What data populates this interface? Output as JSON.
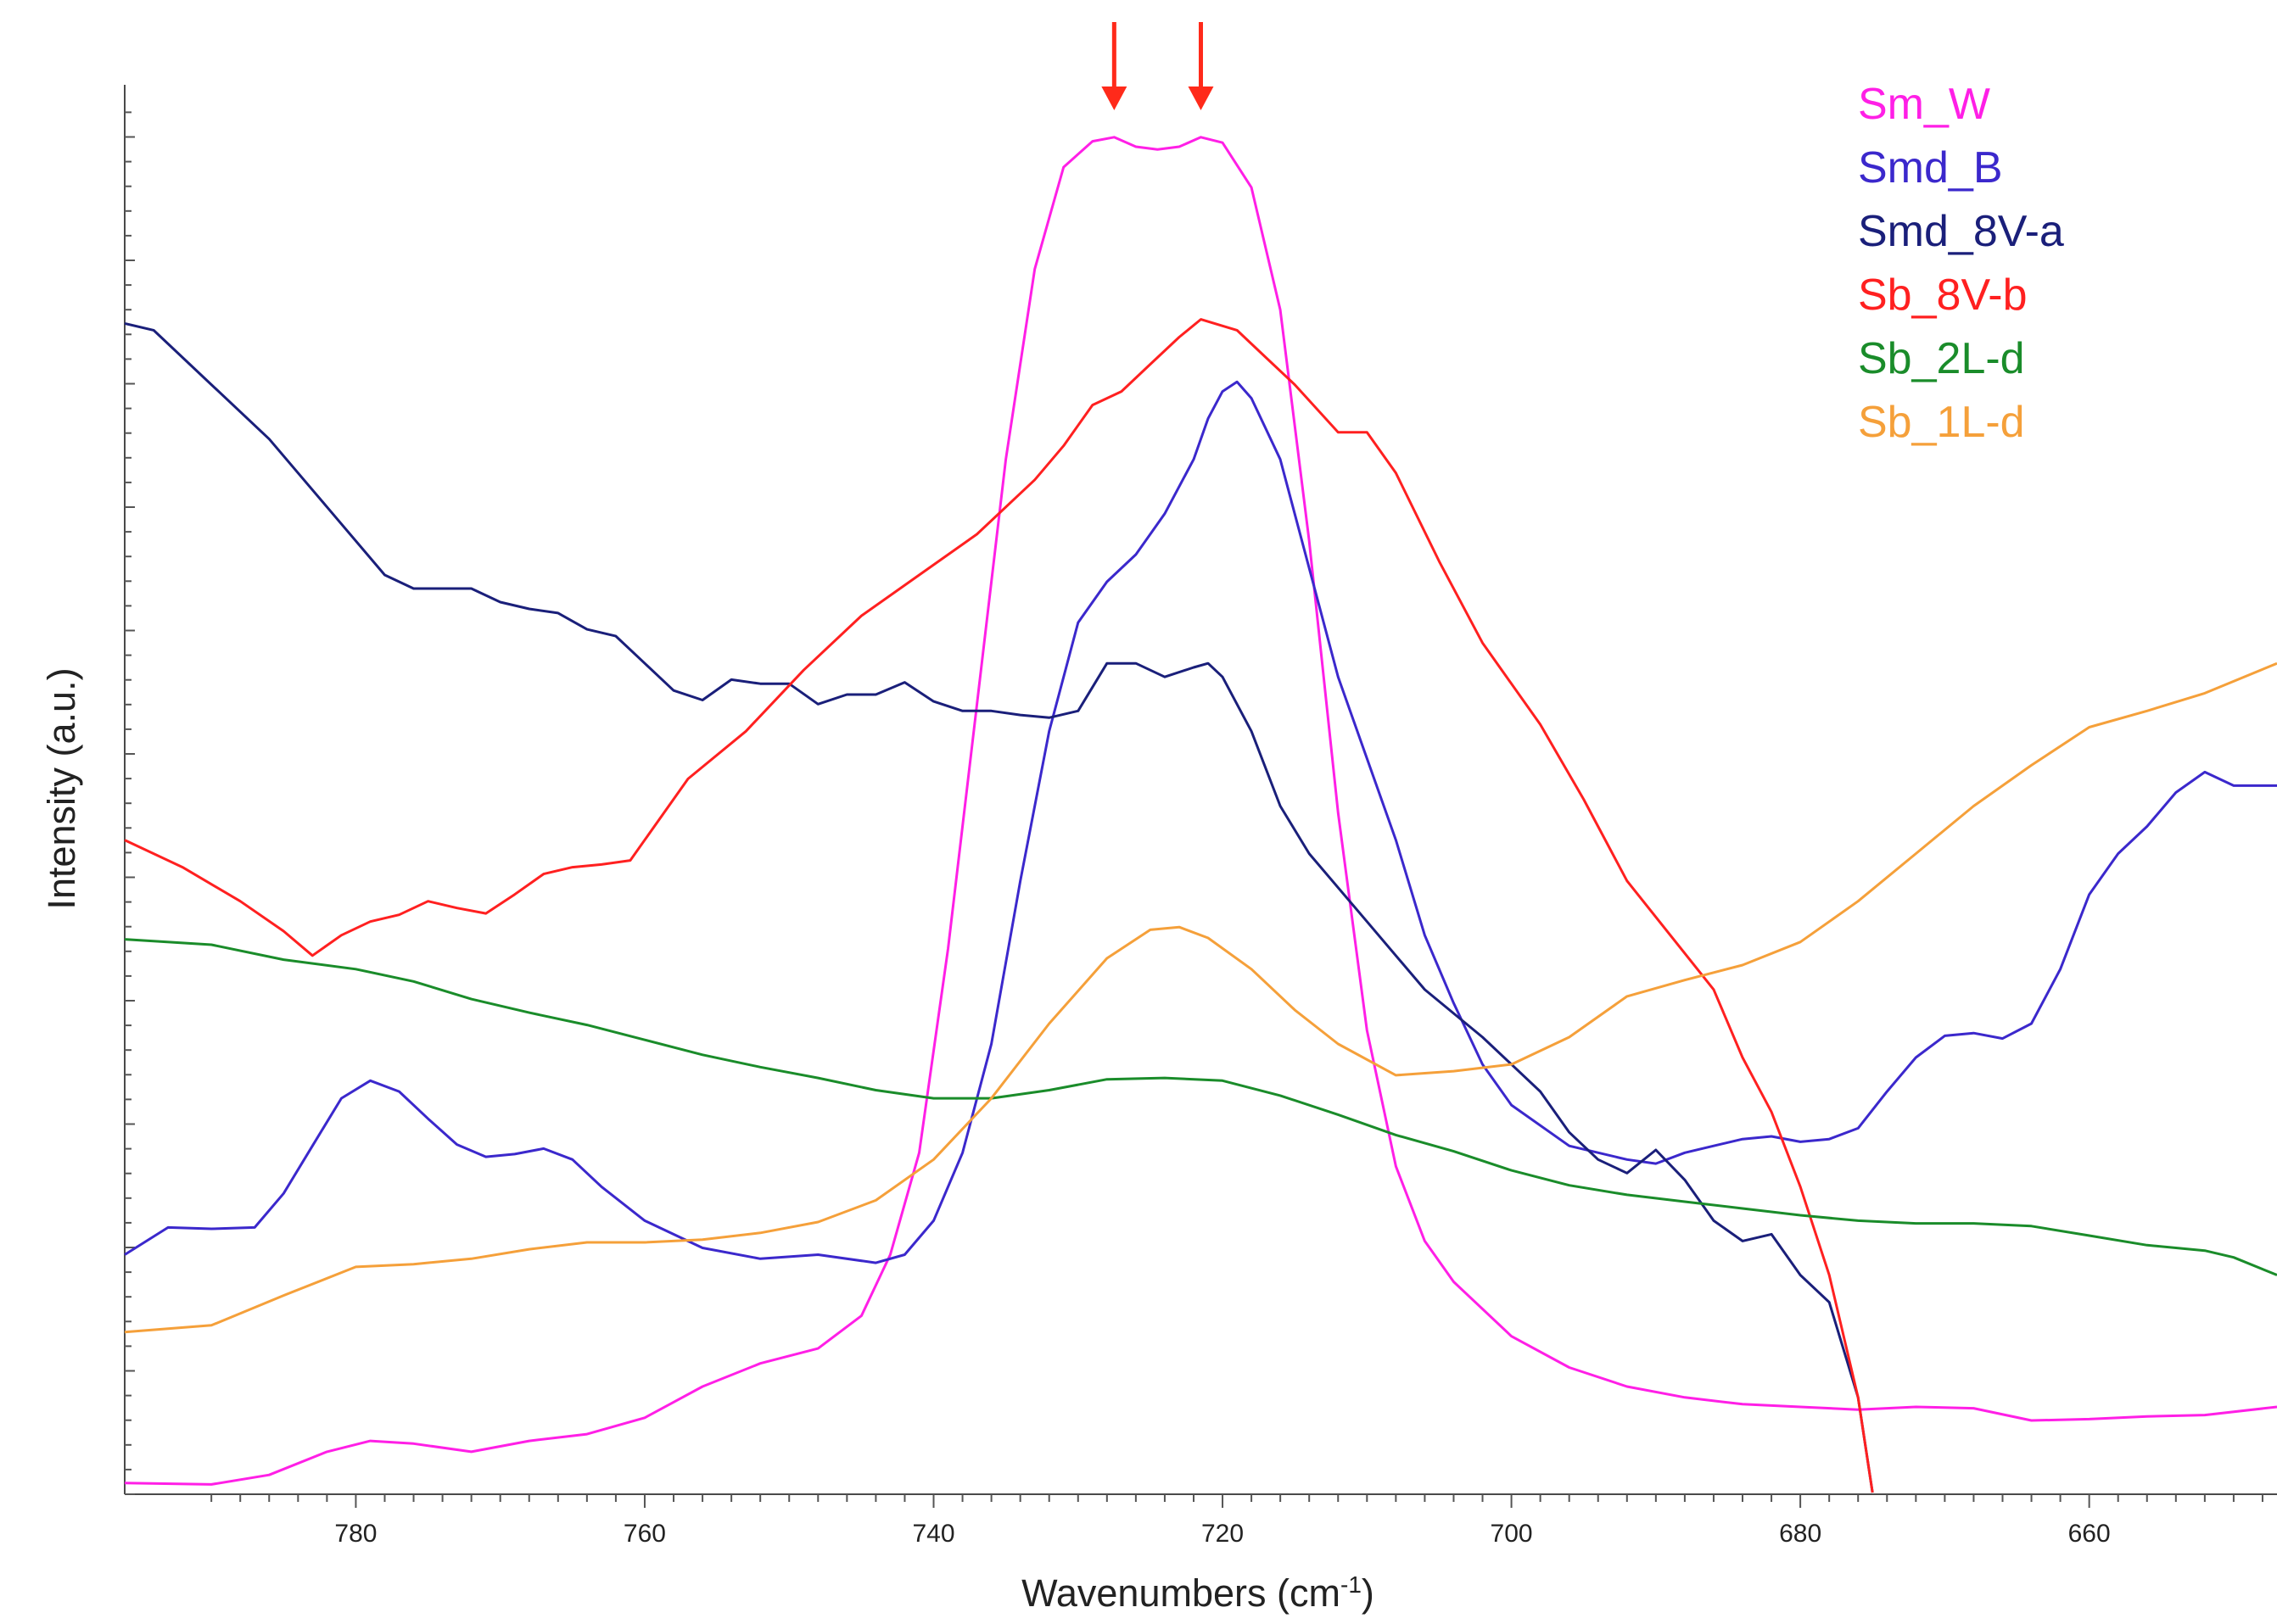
{
  "chart_data": {
    "type": "line",
    "title": "",
    "xlabel": "Wavenumbers",
    "xlabel_unit_base": "cm",
    "xlabel_unit_exp": "-1",
    "ylabel": "Intensity (a.u.)",
    "xlim": [
      796,
      647
    ],
    "ylim": [
      0,
      100
    ],
    "x_reversed": true,
    "x_ticks": [
      780,
      760,
      740,
      720,
      700,
      680,
      660
    ],
    "y_tick_labels": false,
    "grid": false,
    "legend_position": "top-right",
    "annotations": [
      {
        "type": "arrow",
        "x": 727.5,
        "color": "#ff2a1a"
      },
      {
        "type": "arrow",
        "x": 721.5,
        "color": "#ff2a1a"
      }
    ],
    "series": [
      {
        "name": "Sm_W",
        "color": "#ff1fe6",
        "x": [
          796,
          790,
          786,
          782,
          779,
          776,
          772,
          768,
          764,
          760,
          756,
          752,
          748,
          745,
          743,
          741,
          739,
          737,
          735,
          733,
          731,
          729,
          727.5,
          726,
          724.5,
          723,
          721.5,
          720,
          718,
          716,
          714,
          712,
          710,
          708,
          706,
          704,
          700,
          696,
          692,
          688,
          684,
          680,
          676,
          672,
          668,
          664,
          660,
          656,
          652,
          647
        ],
        "values": [
          0.7,
          0.6,
          1.3,
          3,
          3.8,
          3.6,
          3,
          3.8,
          4.3,
          5.5,
          7.8,
          9.5,
          10.6,
          13,
          17.5,
          25,
          40,
          58,
          76,
          90,
          97.5,
          99.4,
          99.7,
          99,
          98.8,
          99,
          99.7,
          99.3,
          96,
          87,
          70,
          50,
          34,
          24,
          18.5,
          15.5,
          11.5,
          9.2,
          7.8,
          7,
          6.5,
          6.3,
          6.1,
          6.3,
          6.2,
          5.3,
          5.4,
          5.6,
          5.7,
          6.3
        ]
      },
      {
        "name": "Smd_B",
        "color": "#3b28cc",
        "x": [
          796,
          793,
          790,
          787,
          785,
          783,
          781,
          779,
          777,
          775,
          773,
          771,
          769,
          767,
          765,
          763,
          760,
          756,
          752,
          748,
          744,
          742,
          740,
          738,
          736,
          734,
          732,
          730,
          728,
          726,
          724,
          722,
          721,
          720,
          719,
          718,
          716,
          714,
          712,
          710,
          708,
          706,
          704,
          702,
          700,
          696,
          692,
          690,
          688,
          686,
          684,
          682,
          680,
          678,
          676,
          674,
          672,
          670,
          668,
          666,
          664,
          662,
          660,
          658,
          656,
          654,
          652,
          650,
          647
        ],
        "values": [
          17.5,
          19.5,
          19.4,
          19.5,
          22,
          25.5,
          29,
          30.3,
          29.5,
          27.5,
          25.6,
          24.7,
          24.9,
          25.3,
          24.5,
          22.5,
          20,
          18,
          17.2,
          17.5,
          16.9,
          17.5,
          20,
          25,
          33,
          45,
          56,
          64,
          67,
          69,
          72,
          76,
          79,
          81,
          81.7,
          80.5,
          76,
          68,
          60,
          54,
          48,
          41,
          36,
          31.5,
          28.5,
          25.5,
          24.5,
          24.2,
          25,
          25.5,
          26,
          26.2,
          25.8,
          26,
          26.8,
          29.5,
          32,
          33.6,
          33.8,
          33.4,
          34.5,
          38.5,
          44,
          47,
          49,
          51.5,
          53,
          52,
          52
        ]
      },
      {
        "name": "Smd_8V-a",
        "color": "#1a1f7a",
        "x": [
          796,
          794,
          790,
          786,
          782,
          778,
          776,
          774,
          772,
          770,
          768,
          766,
          764,
          762,
          760,
          758,
          756,
          754,
          752,
          750,
          748,
          746,
          744,
          742,
          740,
          738,
          736,
          734,
          732,
          730,
          728,
          726,
          724,
          722,
          721,
          720,
          718,
          716,
          714,
          710,
          706,
          702,
          698,
          696,
          694,
          692,
          690,
          688,
          686,
          684,
          682,
          680,
          678,
          676,
          675
        ],
        "values": [
          86,
          85.5,
          81.5,
          77.5,
          72.5,
          67.5,
          66.5,
          66.5,
          66.5,
          65.5,
          65,
          64.7,
          63.5,
          63,
          61,
          59,
          58.3,
          59.8,
          59.5,
          59.5,
          58,
          58.7,
          58.7,
          59.6,
          58.2,
          57.5,
          57.5,
          57.2,
          57,
          57.5,
          61,
          61,
          60,
          60.7,
          61,
          60,
          56,
          50.5,
          47,
          42,
          37,
          33.5,
          29.5,
          26.5,
          24.5,
          23.5,
          25.2,
          23,
          20,
          18.5,
          19,
          16,
          14,
          7,
          0
        ]
      },
      {
        "name": "Sb_8V-b",
        "color": "#ff2020",
        "x": [
          796,
          792,
          788,
          785,
          783,
          781,
          779,
          777,
          775,
          773,
          771,
          769,
          767,
          765,
          763,
          761,
          757,
          753,
          749,
          745,
          741,
          737,
          733,
          731,
          729,
          727,
          725,
          723,
          721.5,
          719,
          717,
          715,
          712,
          710,
          708,
          705,
          702,
          698,
          695,
          692,
          689,
          686,
          684,
          682,
          680,
          678,
          676,
          675
        ],
        "values": [
          48,
          46,
          43.5,
          41.3,
          39.5,
          41,
          42,
          42.5,
          43.5,
          43,
          42.6,
          44,
          45.5,
          46,
          46.2,
          46.5,
          52.5,
          56,
          60.5,
          64.5,
          67.5,
          70.5,
          74.5,
          77,
          80,
          81,
          83,
          85,
          86.3,
          85.5,
          83.5,
          81.5,
          78,
          78,
          75,
          68.5,
          62.5,
          56.5,
          51,
          45,
          41,
          37,
          32,
          28,
          22.5,
          16,
          7,
          0
        ]
      },
      {
        "name": "Sb_2L-d",
        "color": "#1a8c2a",
        "x": [
          796,
          790,
          785,
          780,
          776,
          772,
          768,
          764,
          760,
          756,
          752,
          748,
          744,
          740,
          736,
          732,
          728,
          724,
          720,
          716,
          712,
          708,
          704,
          700,
          696,
          692,
          688,
          684,
          680,
          676,
          672,
          668,
          664,
          660,
          656,
          652,
          650,
          647
        ],
        "values": [
          40.7,
          40.3,
          39.2,
          38.5,
          37.6,
          36.3,
          35.3,
          34.4,
          33.3,
          32.2,
          31.3,
          30.5,
          29.6,
          29,
          29,
          29.6,
          30.4,
          30.5,
          30.3,
          29.2,
          27.8,
          26.3,
          25.1,
          23.7,
          22.6,
          21.9,
          21.4,
          20.9,
          20.4,
          20,
          19.8,
          19.8,
          19.6,
          18.9,
          18.2,
          17.8,
          17.3,
          16
        ]
      },
      {
        "name": "Sb_1L-d",
        "color": "#f5a03a",
        "x": [
          796,
          790,
          785,
          780,
          776,
          772,
          768,
          764,
          760,
          756,
          752,
          748,
          744,
          740,
          736,
          732,
          728,
          725,
          723,
          721,
          718,
          715,
          712,
          708,
          704,
          700,
          696,
          692,
          688,
          684,
          680,
          676,
          672,
          668,
          664,
          660,
          656,
          652,
          647
        ],
        "values": [
          11.8,
          12.3,
          14.5,
          16.6,
          16.8,
          17.2,
          17.9,
          18.4,
          18.4,
          18.6,
          19.1,
          19.9,
          21.5,
          24.5,
          29,
          34.5,
          39.3,
          41.4,
          41.6,
          40.8,
          38.5,
          35.5,
          33,
          30.7,
          31,
          31.5,
          33.5,
          36.5,
          37.7,
          38.8,
          40.5,
          43.5,
          47,
          50.5,
          53.5,
          56.3,
          57.5,
          58.8,
          61
        ]
      }
    ]
  }
}
